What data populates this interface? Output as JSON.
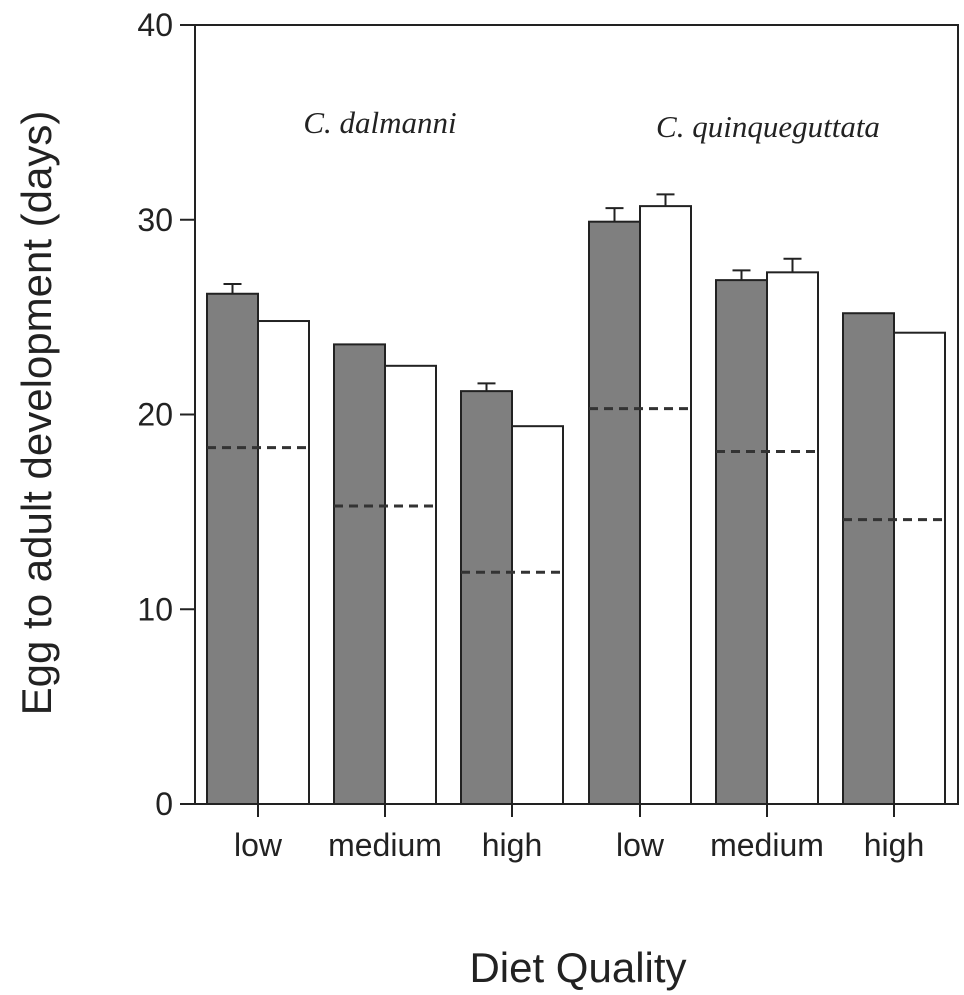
{
  "chart_data": {
    "type": "bar",
    "ylabel": "Egg to adult development (days)",
    "xlabel": "Diet Quality",
    "ylim": [
      0,
      40
    ],
    "yticks": [
      0,
      10,
      20,
      30,
      40
    ],
    "annotations": [
      "C. dalmanni",
      "C. quinqueguttata"
    ],
    "categories": [
      "low",
      "medium",
      "high",
      "low",
      "medium",
      "high"
    ],
    "series": [
      {
        "color": "#7f7f7f",
        "values": [
          26.2,
          23.6,
          21.2,
          29.9,
          26.9,
          25.2
        ],
        "error_upper": [
          0.5,
          0,
          0.4,
          0.7,
          0.5,
          0
        ]
      },
      {
        "color": "#ffffff",
        "values": [
          24.8,
          22.5,
          19.4,
          30.7,
          27.3,
          24.2
        ],
        "error_upper": [
          0,
          0,
          0,
          0.6,
          0.7,
          0
        ]
      }
    ],
    "reference_lines": [
      18.3,
      15.3,
      11.9,
      20.3,
      18.1,
      14.6
    ],
    "grid": false
  }
}
